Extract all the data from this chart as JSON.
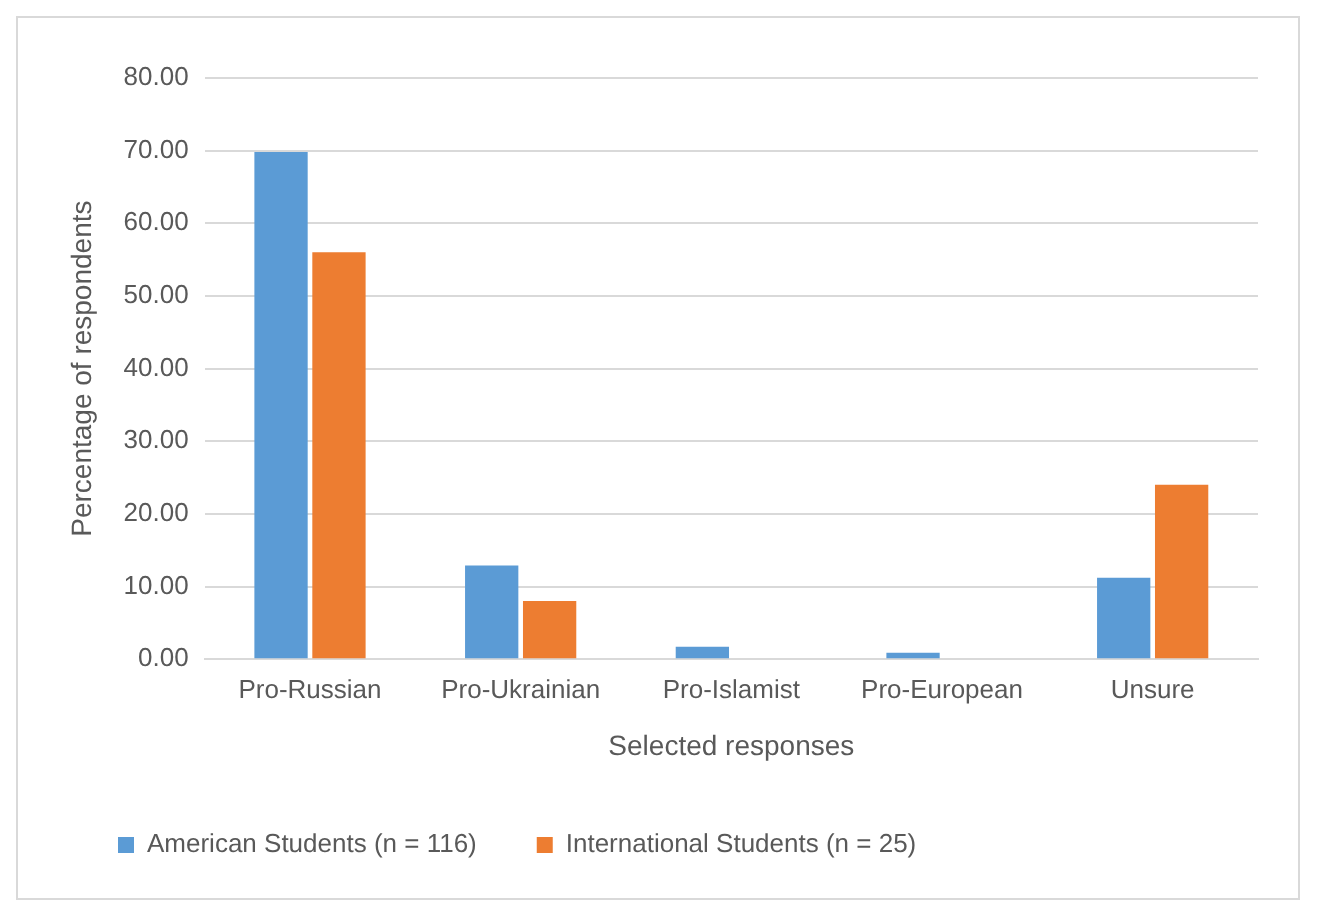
{
  "chart_data": {
    "type": "bar",
    "xlabel": "Selected responses",
    "ylabel": "Percentage of respondents",
    "categories": [
      "Pro-Russian",
      "Pro-Ukrainian",
      "Pro-Islamist",
      "Pro-European",
      "Unsure"
    ],
    "series": [
      {
        "name": "American Students (n = 116)",
        "color": "#5b9bd5",
        "values": [
          69.8,
          12.9,
          1.7,
          0.9,
          11.2
        ]
      },
      {
        "name": "International Students (n = 25)",
        "color": "#ed7d31",
        "values": [
          56,
          8,
          0,
          0,
          24
        ]
      }
    ],
    "ylim": [
      0,
      80
    ],
    "yticks": [
      {
        "value": 0,
        "label": "0.00"
      },
      {
        "value": 10,
        "label": "10.00"
      },
      {
        "value": 20,
        "label": "20.00"
      },
      {
        "value": 30,
        "label": "30.00"
      },
      {
        "value": 40,
        "label": "40.00"
      },
      {
        "value": 50,
        "label": "50.00"
      },
      {
        "value": 60,
        "label": "60.00"
      },
      {
        "value": 70,
        "label": "70.00"
      },
      {
        "value": 80,
        "label": "80.00"
      }
    ],
    "grid": "y",
    "legend": "bottom"
  }
}
